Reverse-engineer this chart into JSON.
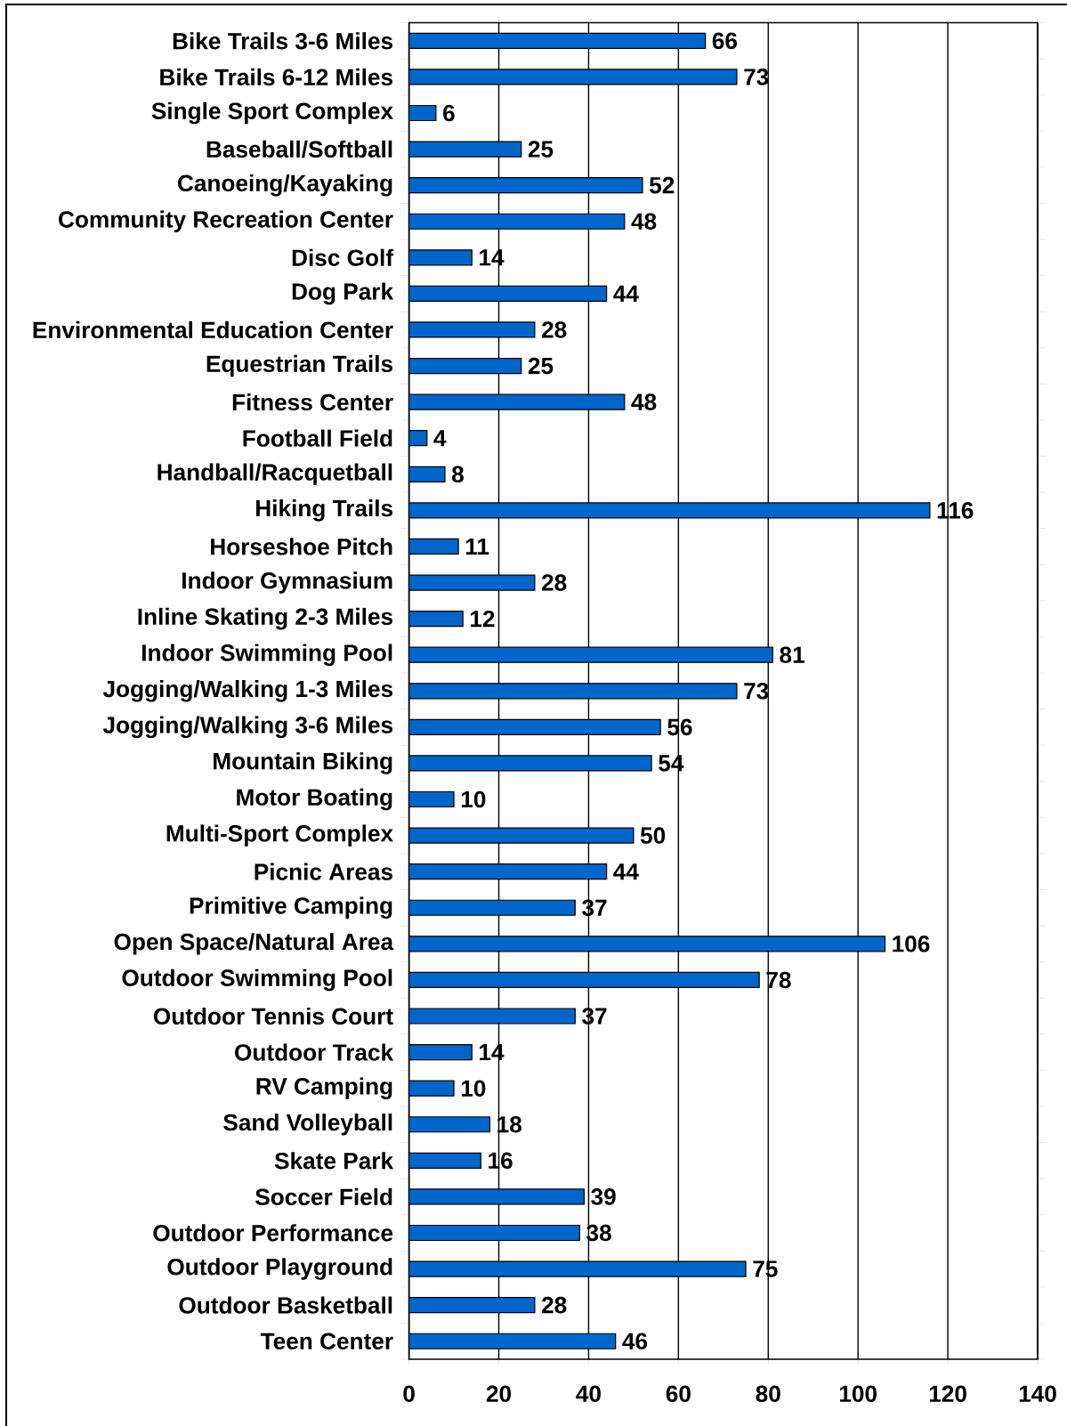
{
  "chart_data": {
    "type": "bar",
    "orientation": "horizontal",
    "categories": [
      "Bike Trails 3-6 Miles",
      "Bike Trails 6-12 Miles",
      "Single Sport Complex",
      "Baseball/Softball",
      "Canoeing/Kayaking",
      "Community Recreation Center",
      "Disc Golf",
      "Dog Park",
      "Environmental Education Center",
      "Equestrian Trails",
      "Fitness Center",
      "Football Field",
      "Handball/Racquetball",
      "Hiking Trails",
      "Horseshoe Pitch",
      "Indoor Gymnasium",
      "Inline Skating 2-3 Miles",
      "Indoor Swimming Pool",
      "Jogging/Walking 1-3 Miles",
      "Jogging/Walking 3-6 Miles",
      "Mountain Biking",
      "Motor Boating",
      "Multi-Sport Complex",
      "Picnic Areas",
      "Primitive Camping",
      "Open Space/Natural Area",
      "Outdoor Swimming Pool",
      "Outdoor Tennis Court",
      "Outdoor Track",
      "RV Camping",
      "Sand Volleyball",
      "Skate Park",
      "Soccer Field",
      "Outdoor Performance",
      "Outdoor Playground",
      "Outdoor Basketball",
      "Teen Center"
    ],
    "values": [
      66,
      73,
      6,
      25,
      52,
      48,
      14,
      44,
      28,
      25,
      48,
      4,
      8,
      116,
      11,
      28,
      12,
      81,
      73,
      56,
      54,
      10,
      50,
      44,
      37,
      106,
      78,
      37,
      14,
      10,
      18,
      16,
      39,
      38,
      75,
      28,
      46
    ],
    "color": "#0066cc",
    "xlim": [
      0,
      140
    ],
    "xticks": [
      0,
      20,
      40,
      60,
      80,
      100,
      120,
      140
    ],
    "grid": "x",
    "data_labels": true
  }
}
